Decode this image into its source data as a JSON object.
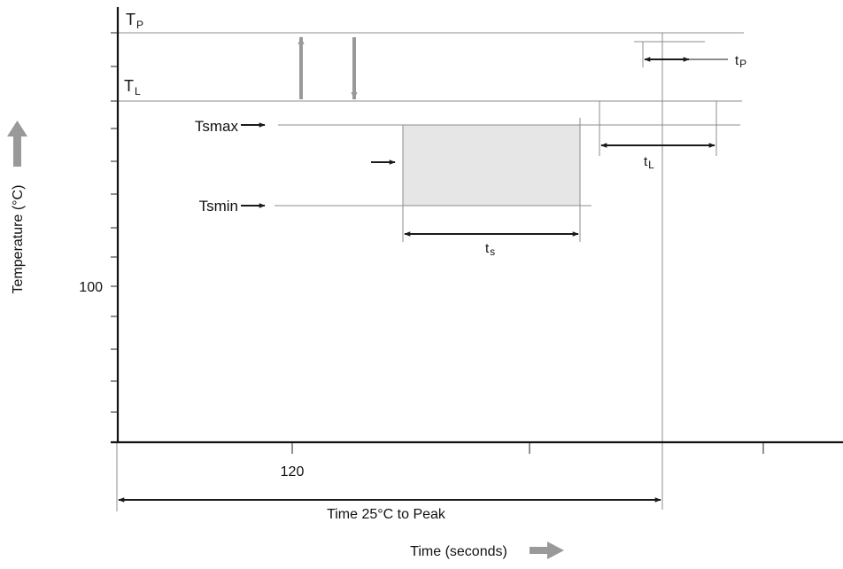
{
  "labels": {
    "tp_main": "T",
    "tp_sub": "P",
    "tl_main": "T",
    "tl_sub": "L",
    "tsmax": "Tsmax",
    "tsmin": "Tsmin",
    "y_value": "100",
    "x_value": "120",
    "ts_main": "t",
    "ts_sub": "s",
    "tl_time_main": "t",
    "tl_time_sub": "L",
    "tp_time_main": "t",
    "tp_time_sub": "P",
    "time_to_peak": "Time 25°C to Peak",
    "x_axis": "Time (seconds)",
    "y_axis": "Temperature (°C)"
  },
  "colors": {
    "soak_region": "#e6e6e6",
    "guide_line": "#8c8c8c",
    "indicator_arrow": "#999999",
    "axis": "#111111"
  },
  "icons": {
    "y_axis_direction": "up-arrow-icon",
    "x_axis_direction": "right-arrow-icon"
  }
}
